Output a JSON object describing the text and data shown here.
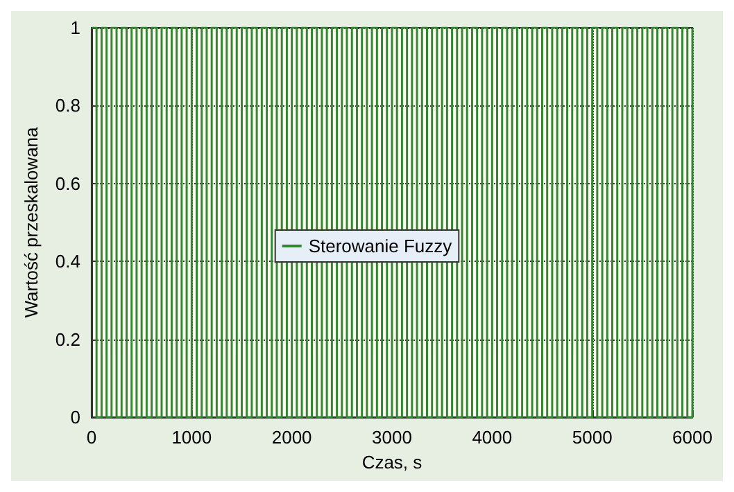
{
  "chart_data": {
    "type": "step",
    "xlabel": "Czas, s",
    "ylabel": "Wartość przeskalowana",
    "x": [
      0,
      50,
      100,
      150,
      200,
      250,
      300,
      350,
      400,
      450,
      500,
      550,
      600,
      650,
      700,
      750,
      800,
      850,
      900,
      950,
      1000,
      1050,
      1100,
      1150,
      1200,
      1250,
      1300,
      1350,
      1400,
      1450,
      1500,
      1550,
      1600,
      1650,
      1700,
      1750,
      1800,
      1850,
      1900,
      1950,
      2000,
      2050,
      2100,
      2150,
      2200,
      2250,
      2300,
      2350,
      2400,
      2450,
      2500,
      2550,
      2600,
      2650,
      2700,
      2750,
      2800,
      2850,
      2900,
      2950,
      3000,
      3050,
      3100,
      3150,
      3200,
      3250,
      3300,
      3350,
      3400,
      3450,
      3500,
      3550,
      3600,
      3650,
      3700,
      3750,
      3800,
      3850,
      3900,
      3950,
      4000,
      4050,
      4100,
      4150,
      4200,
      4250,
      4300,
      4350,
      4400,
      4450,
      4500,
      4550,
      4600,
      4650,
      4700,
      4750,
      4800,
      4850,
      4900,
      4950,
      5000,
      5050,
      5100,
      5150,
      5200,
      5250,
      5300,
      5350,
      5400,
      5450,
      5500,
      5550,
      5600,
      5650,
      5700,
      5750,
      5800,
      5850,
      5900,
      5950,
      6000
    ],
    "series": [
      {
        "name": "Sterowanie Fuzzy",
        "color": "#2f8a2f",
        "values": [
          1,
          0,
          1,
          0,
          1,
          0,
          1,
          0,
          1,
          0,
          1,
          0,
          1,
          0,
          1,
          0,
          1,
          0,
          1,
          0,
          1,
          0,
          1,
          0,
          1,
          0,
          1,
          0,
          1,
          0,
          1,
          0,
          1,
          0,
          1,
          0,
          1,
          0,
          1,
          0,
          1,
          0,
          1,
          0,
          1,
          0,
          1,
          0,
          1,
          0,
          1,
          0,
          1,
          0,
          1,
          0,
          1,
          0,
          1,
          0,
          1,
          0,
          1,
          0,
          1,
          0,
          1,
          0,
          1,
          0,
          1,
          0,
          1,
          0,
          1,
          0,
          1,
          0,
          1,
          0,
          1,
          0,
          1,
          0,
          1,
          0,
          1,
          0,
          1,
          0,
          1,
          0,
          1,
          0,
          1,
          0,
          1,
          0,
          1,
          0,
          1,
          0,
          1,
          0,
          1,
          0,
          1,
          0,
          1,
          0,
          1,
          0,
          1,
          0,
          1,
          0,
          1,
          0,
          1,
          0,
          1
        ]
      }
    ],
    "xlim": [
      0,
      6000
    ],
    "xticks": [
      0,
      1000,
      2000,
      3000,
      4000,
      5000,
      6000
    ],
    "ylim": [
      0,
      1
    ],
    "yticks": [
      0,
      0.2,
      0.4,
      0.6,
      0.8,
      1
    ],
    "grid": true,
    "legend": "center"
  }
}
